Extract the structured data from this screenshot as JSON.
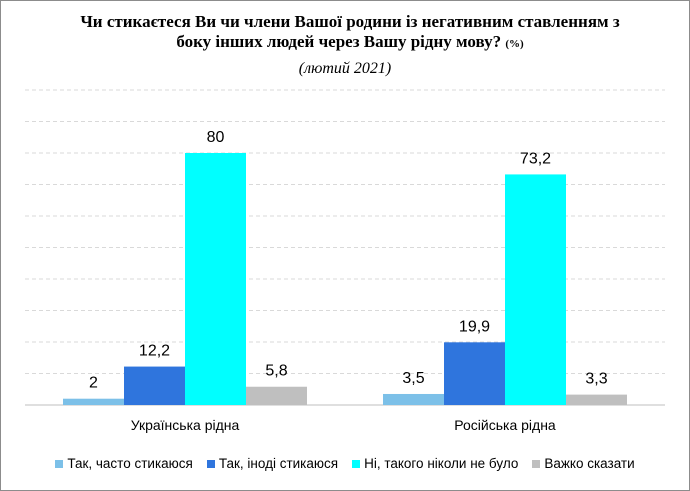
{
  "chart_data": {
    "type": "bar",
    "title": "Чи стикаєтеся Ви чи члени Вашої родини із негативним ставленням з боку інших людей через Вашу рідну мову?",
    "title_unit": "(%)",
    "subtitle": "(лютий 2021)",
    "categories": [
      "Українська рідна",
      "Російська рідна"
    ],
    "ylim": [
      0,
      100
    ],
    "grid": true,
    "legend_position": "bottom",
    "series": [
      {
        "name": "Так, часто стикаюся",
        "color": "#7cc0e8",
        "values": [
          2,
          3.5
        ],
        "labels": [
          "2",
          "3,5"
        ]
      },
      {
        "name": "Так, іноді стикаюся",
        "color": "#2f75dd",
        "values": [
          12.2,
          19.9
        ],
        "labels": [
          "12,2",
          "19,9"
        ]
      },
      {
        "name": "Ні, такого ніколи не було",
        "color": "#00ffff",
        "values": [
          80,
          73.2
        ],
        "labels": [
          "80",
          "73,2"
        ]
      },
      {
        "name": "Важко сказати",
        "color": "#bfbfbf",
        "values": [
          5.8,
          3.3
        ],
        "labels": [
          "5,8",
          "3,3"
        ]
      }
    ]
  }
}
